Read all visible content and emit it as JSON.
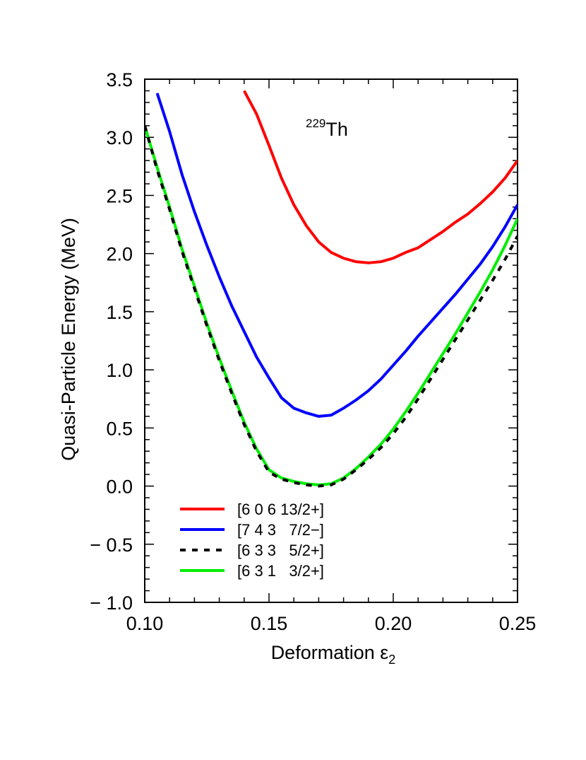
{
  "chart_data": {
    "type": "line",
    "xlabel": "Deformation ε",
    "xlabel_sub": "2",
    "ylabel": "Quasi-Particle Energy (MeV)",
    "annotation": {
      "mass": "229",
      "element": "Th"
    },
    "xlim": [
      0.1,
      0.25
    ],
    "ylim": [
      -1.0,
      3.5
    ],
    "x_ticks": [
      0.1,
      0.15,
      0.2,
      0.25
    ],
    "x_tick_labels": [
      "0.10",
      "0.15",
      "0.20",
      "0.25"
    ],
    "y_ticks": [
      3.5,
      3.0,
      2.5,
      2.0,
      1.5,
      1.0,
      0.5,
      0.0,
      -0.5,
      -1.0
    ],
    "y_tick_labels": [
      "3.5",
      "3.0",
      "2.5",
      "2.0",
      "1.5",
      "1.0",
      "0.5",
      "0.0",
      "− 0.5",
      "− 1.0"
    ],
    "grid": false,
    "legend_position": "bottom-left",
    "series": [
      {
        "name": "[6 0 6 13/2+]",
        "color": "#ff0000",
        "dash": "solid",
        "x": [
          0.14,
          0.145,
          0.15,
          0.155,
          0.16,
          0.165,
          0.17,
          0.175,
          0.18,
          0.185,
          0.19,
          0.195,
          0.2,
          0.205,
          0.21,
          0.215,
          0.22,
          0.225,
          0.23,
          0.235,
          0.24,
          0.245,
          0.25
        ],
        "y": [
          3.4,
          3.2,
          2.93,
          2.65,
          2.42,
          2.24,
          2.1,
          2.01,
          1.96,
          1.93,
          1.92,
          1.93,
          1.96,
          2.01,
          2.05,
          2.12,
          2.19,
          2.27,
          2.34,
          2.43,
          2.53,
          2.65,
          2.8
        ]
      },
      {
        "name": "[7 4 3   7/2−]",
        "color": "#0000ff",
        "dash": "solid",
        "x": [
          0.105,
          0.11,
          0.115,
          0.12,
          0.125,
          0.13,
          0.135,
          0.14,
          0.145,
          0.15,
          0.155,
          0.16,
          0.165,
          0.17,
          0.175,
          0.18,
          0.185,
          0.19,
          0.195,
          0.2,
          0.205,
          0.21,
          0.215,
          0.22,
          0.225,
          0.23,
          0.235,
          0.24,
          0.245,
          0.25
        ],
        "y": [
          3.38,
          3.05,
          2.68,
          2.36,
          2.07,
          1.8,
          1.55,
          1.33,
          1.11,
          0.93,
          0.76,
          0.67,
          0.63,
          0.6,
          0.61,
          0.67,
          0.74,
          0.82,
          0.92,
          1.04,
          1.16,
          1.29,
          1.41,
          1.53,
          1.65,
          1.78,
          1.91,
          2.06,
          2.23,
          2.42
        ]
      },
      {
        "name": "[6 3 3   5/2+]",
        "color": "#000000",
        "dash": "dashed",
        "x": [
          0.1,
          0.105,
          0.11,
          0.115,
          0.12,
          0.125,
          0.13,
          0.135,
          0.14,
          0.145,
          0.15,
          0.155,
          0.16,
          0.165,
          0.17,
          0.175,
          0.18,
          0.185,
          0.19,
          0.195,
          0.2,
          0.205,
          0.21,
          0.215,
          0.22,
          0.225,
          0.23,
          0.235,
          0.24,
          0.245,
          0.25
        ],
        "y": [
          3.1,
          2.72,
          2.38,
          2.02,
          1.7,
          1.38,
          1.08,
          0.8,
          0.53,
          0.3,
          0.12,
          0.06,
          0.03,
          0.01,
          0.0,
          0.01,
          0.06,
          0.14,
          0.23,
          0.33,
          0.45,
          0.59,
          0.75,
          0.92,
          1.09,
          1.26,
          1.43,
          1.6,
          1.77,
          1.95,
          2.15
        ]
      },
      {
        "name": "[6 3 1   3/2+]",
        "color": "#00ee00",
        "dash": "solid",
        "x": [
          0.1,
          0.105,
          0.11,
          0.115,
          0.12,
          0.125,
          0.13,
          0.135,
          0.14,
          0.145,
          0.15,
          0.155,
          0.16,
          0.165,
          0.17,
          0.175,
          0.18,
          0.185,
          0.19,
          0.195,
          0.2,
          0.205,
          0.21,
          0.215,
          0.22,
          0.225,
          0.23,
          0.235,
          0.24,
          0.245,
          0.25
        ],
        "y": [
          3.1,
          2.74,
          2.4,
          2.04,
          1.72,
          1.4,
          1.1,
          0.82,
          0.55,
          0.32,
          0.14,
          0.07,
          0.04,
          0.02,
          0.01,
          0.02,
          0.07,
          0.15,
          0.25,
          0.36,
          0.49,
          0.64,
          0.8,
          0.97,
          1.14,
          1.31,
          1.49,
          1.67,
          1.86,
          2.07,
          2.3
        ]
      }
    ]
  }
}
